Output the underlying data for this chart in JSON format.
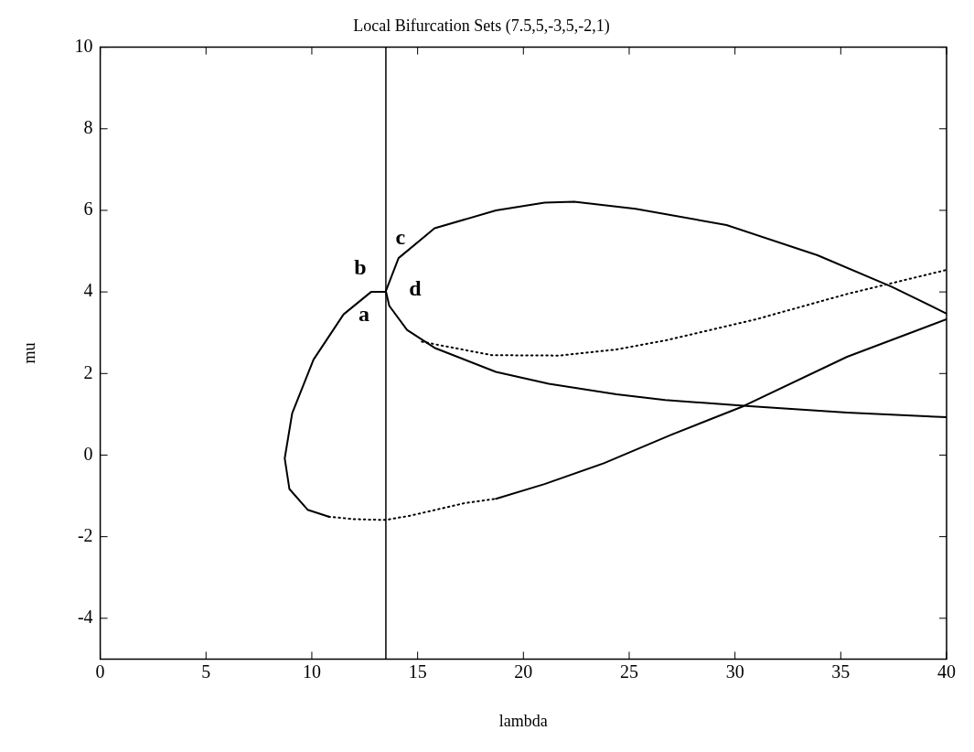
{
  "chart_data": {
    "type": "line",
    "title": "Local Bifurcation Sets (7.5,5,-3,5,-2,1)",
    "xlabel": "lambda",
    "ylabel": "mu",
    "xlim": [
      0,
      40
    ],
    "xticks": [
      0,
      5,
      10,
      15,
      20,
      25,
      30,
      35,
      40
    ],
    "ylim": [
      -5,
      10
    ],
    "yticks": [
      -4,
      -2,
      0,
      2,
      4,
      6,
      8,
      10
    ],
    "marker": "none",
    "series": [
      {
        "color": "#000000",
        "line_style": "solid",
        "x": [
          13.5,
          12.8,
          11.5,
          10.08,
          9.07,
          8.72,
          8.94,
          9.8,
          10.8
        ],
        "values": [
          4.0,
          4.0,
          3.45,
          2.34,
          1.02,
          -0.08,
          -0.83,
          -1.34,
          -1.51
        ]
      },
      {
        "color": "#000000",
        "line_style": "dotted",
        "x": [
          10.8,
          12,
          13.5,
          14.7,
          17.2,
          18.7
        ],
        "values": [
          -1.51,
          -1.57,
          -1.59,
          -1.48,
          -1.18,
          -1.07
        ]
      },
      {
        "color": "#000000",
        "line_style": "solid",
        "x": [
          18.7,
          21,
          23.8,
          27,
          30.4,
          35.3,
          40
        ],
        "values": [
          -1.07,
          -0.71,
          -0.2,
          0.5,
          1.2,
          2.41,
          3.33
        ]
      },
      {
        "color": "#000000",
        "line_style": "solid",
        "x": [
          13.5,
          14.1,
          15.8,
          18.7,
          21,
          22.4,
          25.3,
          29.6,
          33.9,
          37.4,
          40
        ],
        "values": [
          4.02,
          4.83,
          5.56,
          6.0,
          6.19,
          6.21,
          6.04,
          5.64,
          4.9,
          4.13,
          3.47
        ]
      },
      {
        "color": "#000000",
        "line_style": "solid",
        "x": [
          13.5,
          13.66,
          14.5,
          15.8,
          18.7,
          21.2,
          24.4,
          26.7,
          30.7,
          35.3,
          40
        ],
        "values": [
          4.02,
          3.66,
          3.07,
          2.63,
          2.04,
          1.75,
          1.49,
          1.35,
          1.2,
          1.04,
          0.93
        ]
      },
      {
        "color": "#000000",
        "line_style": "dotted",
        "x": [
          15.2,
          18.5,
          21.7,
          24.4,
          26.7,
          31,
          35.3,
          40
        ],
        "values": [
          2.78,
          2.45,
          2.44,
          2.59,
          2.81,
          3.33,
          3.95,
          4.54
        ]
      }
    ],
    "ref_lines": [
      {
        "axis": "x",
        "value": 13.5,
        "color": "#000000"
      }
    ],
    "annotations": [
      "a",
      "b",
      "c",
      "d"
    ]
  }
}
